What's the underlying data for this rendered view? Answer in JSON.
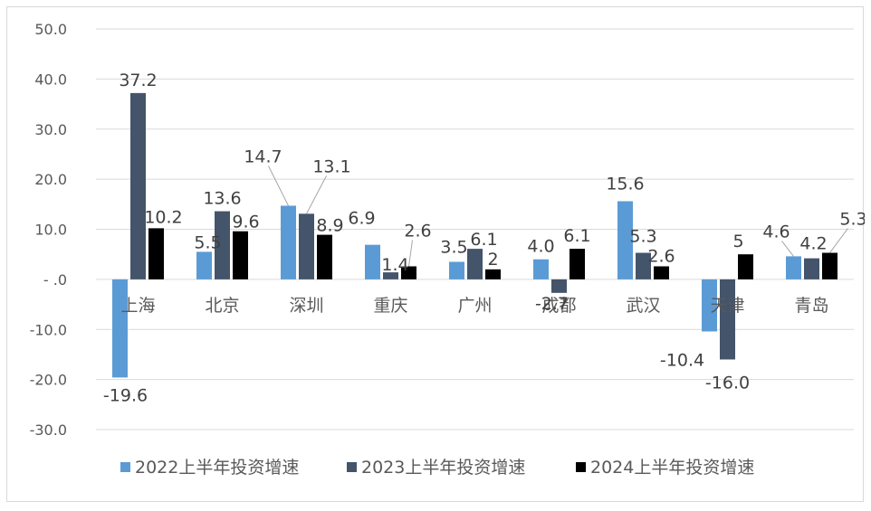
{
  "chart_data": {
    "type": "bar",
    "title": "",
    "xlabel": "",
    "ylabel": "",
    "ylim": [
      -30,
      50
    ],
    "yticks": [
      50,
      40,
      30,
      20,
      10,
      0,
      -10,
      -20,
      -30
    ],
    "ytick_labels": [
      "50.0",
      "40.0",
      "30.0",
      "20.0",
      "10.0",
      "- .0",
      "-10.0",
      "-20.0",
      "-30.0"
    ],
    "categories": [
      "上海",
      "北京",
      "深圳",
      "重庆",
      "广州",
      "成都",
      "武汉",
      "天津",
      "青岛"
    ],
    "series": [
      {
        "name": "2022上半年投资增速",
        "color": "#5b9bd5",
        "values": [
          -19.6,
          5.5,
          14.7,
          6.9,
          3.5,
          4.0,
          15.6,
          -10.4,
          4.6
        ],
        "labels": [
          "-19.6",
          "5.5",
          "14.7",
          "6.9",
          "3.5",
          "4.0",
          "15.6",
          "-10.4",
          "4.6"
        ]
      },
      {
        "name": "2023上半年投资增速",
        "color": "#44546a",
        "values": [
          37.2,
          13.6,
          13.1,
          1.4,
          6.1,
          -2.7,
          5.3,
          -16.0,
          4.2
        ],
        "labels": [
          "37.2",
          "13.6",
          "13.1",
          "1.4",
          "6.1",
          "-2.7",
          "5.3",
          "-16.0",
          "4.2"
        ]
      },
      {
        "name": "2024上半年投资增速",
        "color": "#000000",
        "values": [
          10.2,
          9.6,
          8.9,
          2.6,
          2,
          6.1,
          2.6,
          5,
          5.3
        ],
        "labels": [
          "10.2",
          "9.6",
          "8.9",
          "2.6",
          "2",
          "6.1",
          "2.6",
          "5",
          "5.3"
        ]
      }
    ],
    "legend_position": "bottom"
  }
}
